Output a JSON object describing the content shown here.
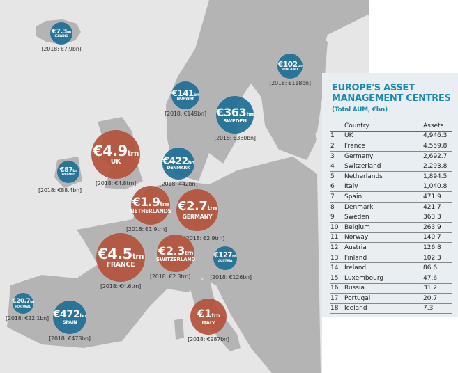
{
  "colors": {
    "large": "#b5523b",
    "small": "#1f6f96",
    "title": "#1a8ab5",
    "land": "#b4b4b4",
    "sea": "#e6e6e6"
  },
  "bubbles": [
    {
      "value": "€7.3",
      "unit": "bn",
      "country": "Iceland",
      "prior": "[2018: €7.9bn]"
    },
    {
      "value": "€87",
      "unit": "bn",
      "country": "Ireland",
      "prior": "[2018: €88.4bn]"
    },
    {
      "value": "€4.9",
      "unit": "trn",
      "country": "UK",
      "prior": "[2018: €4.8trn]"
    },
    {
      "value": "€141",
      "unit": "bn",
      "country": "Norway",
      "prior": "[2018: €149bn]"
    },
    {
      "value": "€363",
      "unit": "bn",
      "country": "Sweden",
      "prior": "[2018: €380bn]"
    },
    {
      "value": "€102",
      "unit": "bn",
      "country": "Finland",
      "prior": "[2018: €118bn]"
    },
    {
      "value": "€422",
      "unit": "bn",
      "country": "Denmark",
      "prior": "[2018: 442bn]"
    },
    {
      "value": "€1.9",
      "unit": "trn",
      "country": "Netherlands",
      "prior": "[2018: €1.9trn]"
    },
    {
      "value": "€2.7",
      "unit": "trn",
      "country": "Germany",
      "prior": "[2018: €2.9trn]"
    },
    {
      "value": "€4.5",
      "unit": "trn",
      "country": "France",
      "prior": "[2018: €4.6trn]"
    },
    {
      "value": "€2.3",
      "unit": "trn",
      "country": "Switzerland",
      "prior": "[2018: €2.3trn]"
    },
    {
      "value": "€127",
      "unit": "bn",
      "country": "Austria",
      "prior": "[2018: €126bn]"
    },
    {
      "value": "€20.7",
      "unit": "bn",
      "country": "Portugal",
      "prior": "[2018: €22.1bn]"
    },
    {
      "value": "€472",
      "unit": "bn",
      "country": "Spain",
      "prior": "[2018: €478bn]"
    },
    {
      "value": "€1",
      "unit": "trn",
      "country": "Italy",
      "prior": "[2018: €987bn]"
    }
  ],
  "panel": {
    "title": "EUROPE'S ASSET MANAGEMENT CENTRES",
    "subtitle": "(Total AUM, €bn)",
    "col_country": "Country",
    "col_assets": "Assets",
    "rows": [
      [
        "1",
        "UK",
        "4,946.3"
      ],
      [
        "2",
        "France",
        "4,559.8"
      ],
      [
        "3",
        "Germany",
        "2,692.7"
      ],
      [
        "4",
        "Switzerland",
        "2,293.8"
      ],
      [
        "5",
        "Netherlands",
        "1,894.5"
      ],
      [
        "6",
        "Italy",
        "1,040.8"
      ],
      [
        "7",
        "Spain",
        "471.9"
      ],
      [
        "8",
        "Denmark",
        "421.7"
      ],
      [
        "9",
        "Sweden",
        "363.3"
      ],
      [
        "10",
        "Belgium",
        "263.9"
      ],
      [
        "11",
        "Norway",
        "140.7"
      ],
      [
        "12",
        "Austria",
        "126.8"
      ],
      [
        "13",
        "Finland",
        "102.3"
      ],
      [
        "14",
        "Ireland",
        "86.6"
      ],
      [
        "15",
        "Luxembourg",
        "47.6"
      ],
      [
        "16",
        "Russia",
        "31.2"
      ],
      [
        "17",
        "Portugal",
        "20.7"
      ],
      [
        "18",
        "Iceland",
        "7.3"
      ]
    ]
  }
}
